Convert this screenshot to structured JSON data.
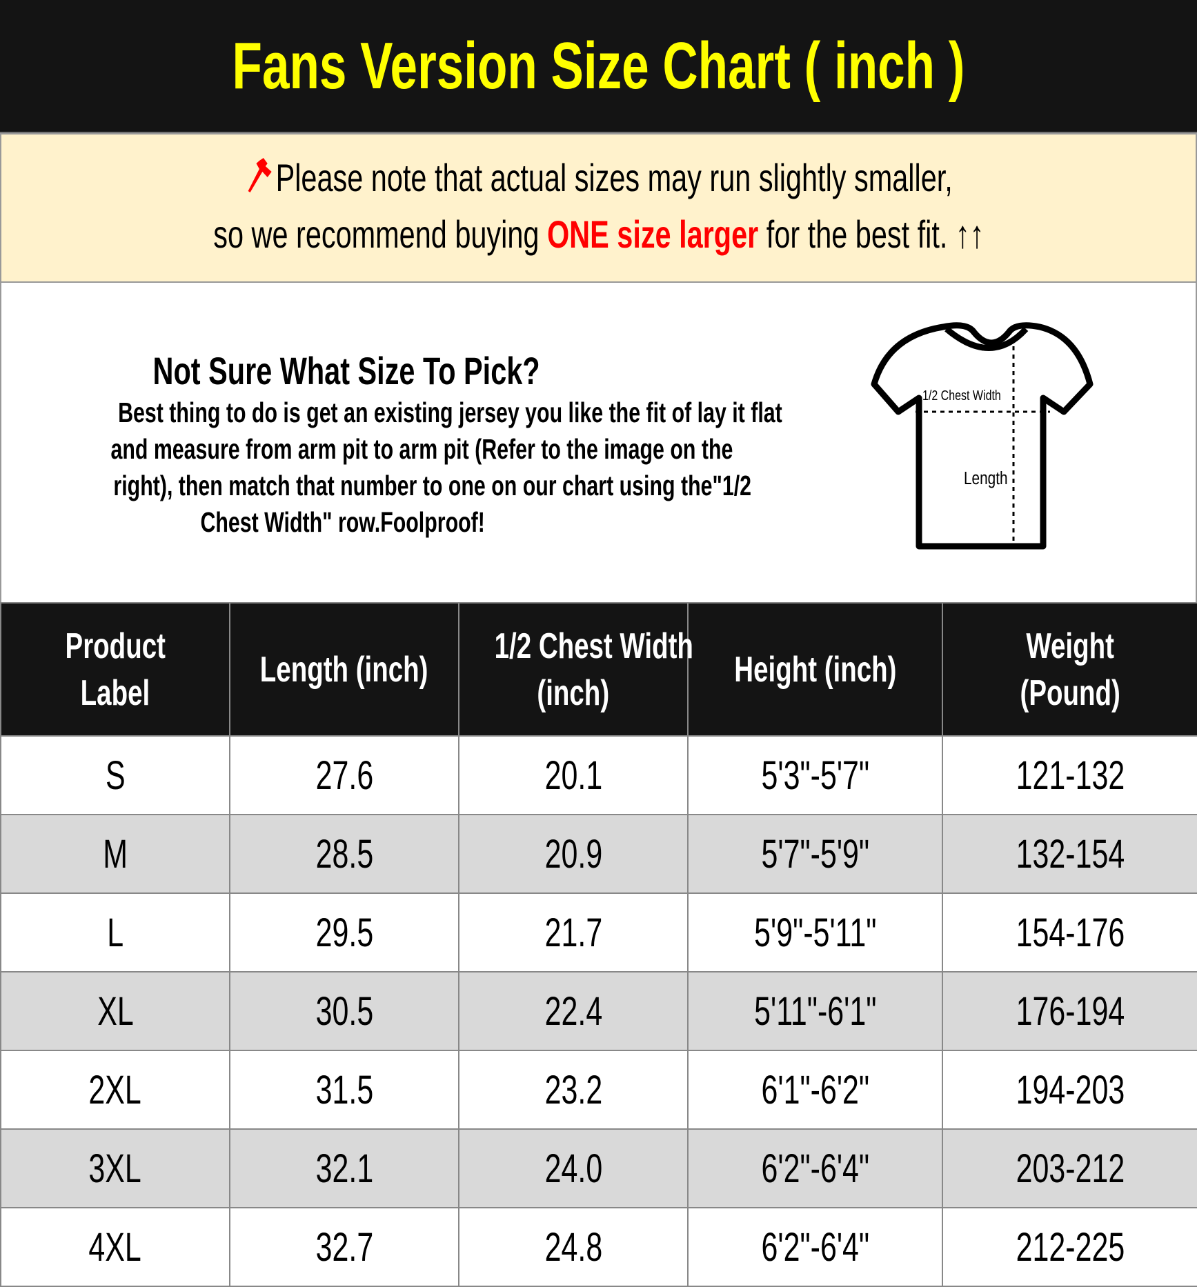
{
  "title": "Fans Version Size Chart ( inch )",
  "colors": {
    "title_bg": "#141414",
    "title_text": "#ffff00",
    "note_bg": "#fff2cc",
    "highlight": "#ff0000",
    "alt_row": "#d9d9d9"
  },
  "note": {
    "icon": "pushpin-icon",
    "line1": "Please note that actual sizes may run slightly smaller,",
    "line2_before": "so we recommend buying ",
    "line2_highlight": "ONE size larger",
    "line2_after": " for the best fit. ",
    "arrows": "↑↑"
  },
  "guide": {
    "heading": "Not Sure What Size To Pick?",
    "lines": [
      "Best thing to do is get an existing jersey you like the fit of lay it flat",
      "and measure from arm pit to arm pit (Refer to the image on the",
      "right), then match that number to one on our chart using the\"1/2",
      "Chest Width\" row.Foolproof!"
    ],
    "diagram": {
      "chest_label": "1/2 Chest Width",
      "length_label": "Length"
    }
  },
  "table": {
    "headers": [
      [
        "Product",
        "Label"
      ],
      [
        "Length (inch)"
      ],
      [
        "1/2 Chest Width",
        "(inch)"
      ],
      [
        "Height (inch)"
      ],
      [
        "Weight",
        "(Pound)"
      ]
    ],
    "rows": [
      [
        "S",
        "27.6",
        "20.1",
        "5'3\"-5'7\"",
        "121-132"
      ],
      [
        "M",
        "28.5",
        "20.9",
        "5'7\"-5'9\"",
        "132-154"
      ],
      [
        "L",
        "29.5",
        "21.7",
        "5'9\"-5'11\"",
        "154-176"
      ],
      [
        "XL",
        "30.5",
        "22.4",
        "5'11\"-6'1\"",
        "176-194"
      ],
      [
        "2XL",
        "31.5",
        "23.2",
        "6'1\"-6'2\"",
        "194-203"
      ],
      [
        "3XL",
        "32.1",
        "24.0",
        "6'2\"-6'4\"",
        "203-212"
      ],
      [
        "4XL",
        "32.7",
        "24.8",
        "6'2\"-6'4\"",
        "212-225"
      ]
    ]
  }
}
